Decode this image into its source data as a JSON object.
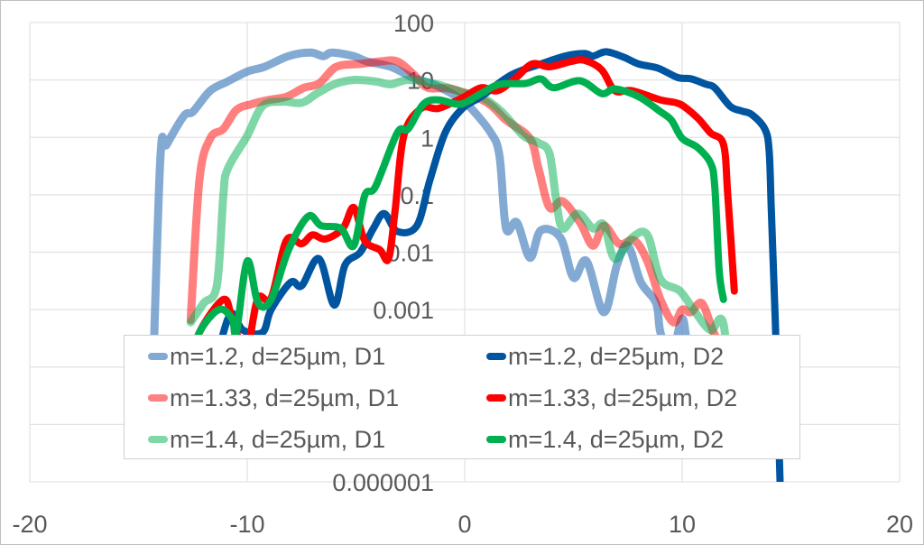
{
  "chart_data": {
    "type": "line",
    "title": "",
    "xlabel": "",
    "ylabel": "",
    "xlim": [
      -20,
      20
    ],
    "ylim": [
      1e-06,
      100
    ],
    "yscale": "log",
    "grid": true,
    "legend_position": "bottom-center-inside",
    "x_ticks": [
      "-20",
      "-10",
      "0",
      "10",
      "20"
    ],
    "x_tick_values": [
      -20,
      -10,
      0,
      10,
      20
    ],
    "y_ticks": [
      "100",
      "10",
      "1",
      "0.1",
      "0.01",
      "0.001",
      "0.000001"
    ],
    "y_tick_values": [
      100,
      10,
      1,
      0.1,
      0.01,
      0.001,
      1e-06
    ],
    "y_gridlines": [
      100,
      10,
      1,
      0.1,
      0.01,
      0.001,
      0.0001,
      1e-05,
      1e-06
    ],
    "series": [
      {
        "name": "m=1.2, d=25µm, D1",
        "color": "#4f86c0",
        "opacity": 0.7,
        "x": [
          -14.4,
          -14.0,
          -13.7,
          -12.9,
          -12.5,
          -11.7,
          -10.9,
          -10.0,
          -9.2,
          -8.1,
          -7.1,
          -6.5,
          -6.1,
          -5.1,
          -4.5,
          -3.4,
          -2.4,
          -1.45,
          -0.35,
          0.2,
          1.2,
          1.6,
          1.9,
          2.4,
          3.0,
          3.5,
          4.4,
          5.0,
          5.6,
          6.4,
          7.0,
          7.5,
          8.1,
          8.8,
          9.0,
          9.5,
          10.0,
          10.3,
          10.8,
          11.3,
          11.8,
          12.2
        ],
        "y": [
          1e-05,
          0.4,
          0.75,
          2.4,
          2.8,
          6.5,
          9.4,
          14,
          17,
          26,
          30,
          26,
          30,
          26,
          21,
          17,
          11,
          8.4,
          5.1,
          3.5,
          1.2,
          0.47,
          0.026,
          0.033,
          0.008,
          0.024,
          0.018,
          0.0036,
          0.007,
          0.0009,
          0.006,
          0.013,
          0.003,
          0.0013,
          0.0004,
          0.00015,
          0.0007,
          0.0002,
          0.0003,
          0.0001,
          0.0003,
          3e-05
        ]
      },
      {
        "name": "m=1.33, d=25µm, D1",
        "color": "#ff0000",
        "opacity": 0.5,
        "x": [
          -12.6,
          -12.2,
          -11.7,
          -11.1,
          -10.5,
          -9.8,
          -9.0,
          -8.2,
          -7.4,
          -6.7,
          -5.9,
          -4.8,
          -3.9,
          -3.1,
          -2.3,
          -1.7,
          -0.6,
          1.0,
          1.9,
          3.0,
          3.4,
          3.9,
          4.5,
          5.3,
          5.9,
          6.4,
          7.1,
          7.8,
          8.4,
          9.0,
          9.6,
          10.0,
          10.4,
          10.9,
          11.4,
          11.8,
          12.2
        ],
        "y": [
          0.00066,
          0.18,
          0.96,
          1.4,
          3.0,
          3.8,
          4.5,
          5.1,
          7.3,
          8.7,
          17,
          19,
          21,
          21,
          12,
          7.3,
          7,
          4.1,
          2.0,
          0.96,
          0.28,
          0.06,
          0.077,
          0.033,
          0.013,
          0.029,
          0.014,
          0.016,
          0.007,
          0.0015,
          0.0006,
          0.001,
          0.0009,
          0.0013,
          0.00044,
          0.0002,
          5e-05
        ]
      },
      {
        "name": "m=1.4, d=25µm, D1",
        "color": "#00b050",
        "opacity": 0.5,
        "x": [
          -12.6,
          -12.0,
          -11.4,
          -11.1,
          -10.9,
          -10.0,
          -9.3,
          -8.4,
          -7.5,
          -6.8,
          -6.0,
          -5.1,
          -4.1,
          -3.4,
          -2.6,
          -1.3,
          -0.1,
          0.75,
          1.7,
          2.7,
          3.4,
          3.9,
          4.2,
          4.5,
          5.2,
          5.9,
          6.4,
          6.9,
          7.7,
          8.4,
          9.0,
          9.9,
          10.6,
          11.3,
          11.9,
          12.3
        ],
        "y": [
          0.0006,
          0.0013,
          0.0026,
          0.096,
          0.28,
          1.07,
          3.5,
          4.2,
          4.0,
          5.8,
          8.4,
          10,
          9.4,
          8.4,
          10,
          8.4,
          6.1,
          5.1,
          2.8,
          1.07,
          0.8,
          0.52,
          0.086,
          0.026,
          0.047,
          0.026,
          0.03,
          0.0077,
          0.018,
          0.02,
          0.0034,
          0.0021,
          0.0009,
          0.00044,
          0.00056,
          1e-05
        ]
      },
      {
        "name": "m=1.2, d=25µm, D2",
        "color": "#0055a0",
        "opacity": 1,
        "x": [
          -11.4,
          -11.1,
          -10.7,
          -10.2,
          -9.3,
          -8.9,
          -8.0,
          -7.5,
          -6.7,
          -6.0,
          -5.5,
          -4.8,
          -4.2,
          -3.7,
          -3.1,
          -2.2,
          -1.6,
          -0.9,
          -0.1,
          0.75,
          2.1,
          3.5,
          4.6,
          5.5,
          5.9,
          6.5,
          7.3,
          8.0,
          8.9,
          9.8,
          10.4,
          11.1,
          11.5,
          12.2,
          12.7,
          13.2,
          13.8,
          14.0,
          14.1,
          14.3,
          14.5
        ],
        "y": [
          0.0001,
          0.00039,
          0.00086,
          0.00044,
          0.0004,
          0.001,
          0.003,
          0.0026,
          0.0077,
          0.0012,
          0.006,
          0.01,
          0.026,
          0.047,
          0.023,
          0.029,
          0.18,
          1.2,
          3.2,
          5.1,
          12,
          19,
          26,
          29,
          26,
          31,
          25,
          19,
          16,
          11,
          10.5,
          8.4,
          7.3,
          3.5,
          2.9,
          2.5,
          1.4,
          0.58,
          0.054,
          0.0004,
          1e-06
        ]
      },
      {
        "name": "m=1.33, d=25µm, D2",
        "color": "#ff0000",
        "opacity": 1,
        "x": [
          -12.6,
          -12.2,
          -11.1,
          -10.7,
          -10.2,
          -9.9,
          -9.5,
          -8.9,
          -8.2,
          -7.5,
          -7.0,
          -6.4,
          -5.6,
          -5.1,
          -4.6,
          -3.9,
          -3.5,
          -3.2,
          -2.8,
          -2.0,
          -1.2,
          -0.1,
          0.75,
          1.5,
          2.3,
          3.1,
          3.9,
          4.9,
          5.5,
          6.3,
          6.9,
          7.7,
          9.0,
          9.9,
          10.7,
          11.3,
          11.9,
          12.1,
          12.4
        ],
        "y": [
          0.0001,
          0.0004,
          0.0015,
          0.0007,
          0.0002,
          0.0003,
          0.0016,
          0.0016,
          0.016,
          0.014,
          0.02,
          0.017,
          0.026,
          0.06,
          0.016,
          0.011,
          0.0077,
          0.054,
          1.07,
          3.2,
          3.2,
          4.9,
          7.3,
          6.5,
          10.4,
          19,
          17,
          21,
          22,
          15,
          6.5,
          6.5,
          4.5,
          3.8,
          2.2,
          1.2,
          0.75,
          0.096,
          0.0021
        ]
      },
      {
        "name": "m=1.4, d=25µm, D2",
        "color": "#00b050",
        "opacity": 1,
        "x": [
          -12.6,
          -12.2,
          -11.3,
          -10.7,
          -10.5,
          -10.0,
          -9.5,
          -8.9,
          -8.1,
          -7.2,
          -6.6,
          -5.7,
          -5.1,
          -4.6,
          -4.1,
          -3.1,
          -2.6,
          -1.9,
          -1.2,
          -0.2,
          0.75,
          1.6,
          2.8,
          3.5,
          4.1,
          5.3,
          6.3,
          6.9,
          8.0,
          9.0,
          9.5,
          10.0,
          10.7,
          11.3,
          11.5,
          11.7,
          11.9
        ],
        "y": [
          0.0001,
          0.0004,
          0.001,
          0.0007,
          0.0004,
          0.007,
          0.0013,
          0.0015,
          0.011,
          0.042,
          0.029,
          0.026,
          0.013,
          0.096,
          0.14,
          1.2,
          1.4,
          3.8,
          4.5,
          3.8,
          5.8,
          8.4,
          8.7,
          10.4,
          7.3,
          9.7,
          5.8,
          7,
          5.1,
          2.8,
          2.0,
          0.96,
          0.67,
          0.36,
          0.14,
          0.0048,
          0.0015
        ]
      }
    ]
  }
}
